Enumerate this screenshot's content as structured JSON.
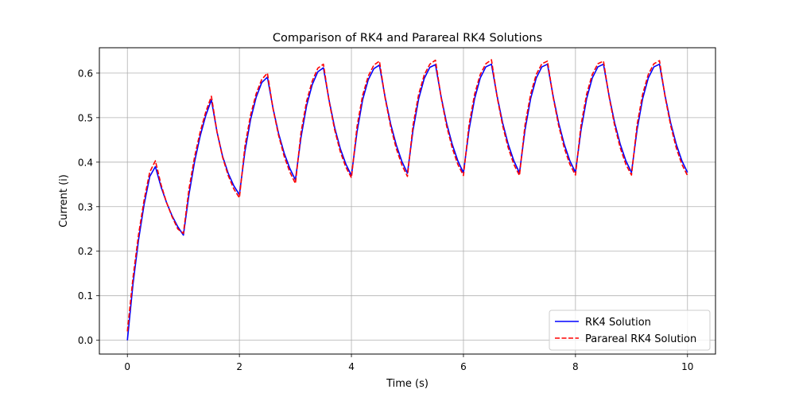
{
  "chart_data": {
    "type": "line",
    "title": "Comparison of RK4 and Parareal RK4 Solutions",
    "xlabel": "Time (s)",
    "ylabel": "Current (i)",
    "xlim": [
      -0.5,
      10.5
    ],
    "ylim": [
      -0.031,
      0.657
    ],
    "xticks": [
      0,
      2,
      4,
      6,
      8,
      10
    ],
    "xtick_labels": [
      "0",
      "2",
      "4",
      "6",
      "8",
      "10"
    ],
    "yticks": [
      0.0,
      0.1,
      0.2,
      0.3,
      0.4,
      0.5,
      0.6
    ],
    "ytick_labels": [
      "0.0",
      "0.1",
      "0.2",
      "0.3",
      "0.4",
      "0.5",
      "0.6"
    ],
    "grid": true,
    "legend_position": "lower-right",
    "series": [
      {
        "name": "RK4 Solution",
        "color": "#0000ff",
        "line_style": "solid",
        "x": [
          0,
          0.1,
          0.2,
          0.3,
          0.4,
          0.5,
          0.6,
          0.7,
          0.8,
          0.9,
          1.0,
          1.1,
          1.2,
          1.3,
          1.4,
          1.5,
          1.6,
          1.7,
          1.8,
          1.9,
          2.0,
          2.1,
          2.2,
          2.3,
          2.4,
          2.5,
          2.6,
          2.7,
          2.8,
          2.9,
          3.0,
          3.1,
          3.2,
          3.3,
          3.4,
          3.5,
          3.6,
          3.7,
          3.8,
          3.9,
          4.0,
          4.1,
          4.2,
          4.3,
          4.4,
          4.5,
          4.6,
          4.7,
          4.8,
          4.9,
          5.0,
          5.1,
          5.2,
          5.3,
          5.4,
          5.5,
          5.6,
          5.7,
          5.8,
          5.9,
          6.0,
          6.1,
          6.2,
          6.3,
          6.4,
          6.5,
          6.6,
          6.7,
          6.8,
          6.9,
          7.0,
          7.1,
          7.2,
          7.3,
          7.4,
          7.5,
          7.6,
          7.7,
          7.8,
          7.9,
          8.0,
          8.1,
          8.2,
          8.3,
          8.4,
          8.5,
          8.6,
          8.7,
          8.8,
          8.9,
          9.0,
          9.1,
          9.2,
          9.3,
          9.4,
          9.5,
          9.6,
          9.7,
          9.8,
          9.9,
          10.0
        ],
        "values": [
          0.0,
          0.126,
          0.226,
          0.306,
          0.368,
          0.39,
          0.345,
          0.309,
          0.279,
          0.255,
          0.236,
          0.328,
          0.401,
          0.459,
          0.505,
          0.54,
          0.468,
          0.413,
          0.375,
          0.347,
          0.327,
          0.425,
          0.496,
          0.546,
          0.579,
          0.591,
          0.521,
          0.464,
          0.42,
          0.386,
          0.36,
          0.456,
          0.527,
          0.574,
          0.603,
          0.612,
          0.54,
          0.478,
          0.431,
          0.396,
          0.37,
          0.468,
          0.54,
          0.585,
          0.61,
          0.618,
          0.547,
          0.486,
          0.439,
          0.402,
          0.375,
          0.472,
          0.542,
          0.588,
          0.613,
          0.619,
          0.548,
          0.487,
          0.44,
          0.403,
          0.376,
          0.473,
          0.543,
          0.589,
          0.614,
          0.62,
          0.549,
          0.488,
          0.44,
          0.403,
          0.376,
          0.473,
          0.543,
          0.589,
          0.614,
          0.62,
          0.549,
          0.488,
          0.44,
          0.403,
          0.377,
          0.473,
          0.543,
          0.589,
          0.614,
          0.62,
          0.549,
          0.488,
          0.44,
          0.403,
          0.377,
          0.473,
          0.543,
          0.589,
          0.614,
          0.62,
          0.549,
          0.488,
          0.44,
          0.403,
          0.377
        ]
      },
      {
        "name": "Parareal RK4 Solution",
        "color": "#ff0000",
        "line_style": "dashed",
        "x": [
          0,
          0.1,
          0.2,
          0.3,
          0.4,
          0.5,
          0.6,
          0.7,
          0.8,
          0.9,
          1.0,
          1.1,
          1.2,
          1.3,
          1.4,
          1.5,
          1.6,
          1.7,
          1.8,
          1.9,
          2.0,
          2.1,
          2.2,
          2.3,
          2.4,
          2.5,
          2.6,
          2.7,
          2.8,
          2.9,
          3.0,
          3.1,
          3.2,
          3.3,
          3.4,
          3.5,
          3.6,
          3.7,
          3.8,
          3.9,
          4.0,
          4.1,
          4.2,
          4.3,
          4.4,
          4.5,
          4.6,
          4.7,
          4.8,
          4.9,
          5.0,
          5.1,
          5.2,
          5.3,
          5.4,
          5.5,
          5.6,
          5.7,
          5.8,
          5.9,
          6.0,
          6.1,
          6.2,
          6.3,
          6.4,
          6.5,
          6.6,
          6.7,
          6.8,
          6.9,
          7.0,
          7.1,
          7.2,
          7.3,
          7.4,
          7.5,
          7.6,
          7.7,
          7.8,
          7.9,
          8.0,
          8.1,
          8.2,
          8.3,
          8.4,
          8.5,
          8.6,
          8.7,
          8.8,
          8.9,
          9.0,
          9.1,
          9.2,
          9.3,
          9.4,
          9.5,
          9.6,
          9.7,
          9.8,
          9.9,
          10.0
        ],
        "values": [
          0.02,
          0.14,
          0.238,
          0.316,
          0.378,
          0.403,
          0.35,
          0.309,
          0.277,
          0.25,
          0.24,
          0.34,
          0.412,
          0.468,
          0.513,
          0.548,
          0.468,
          0.411,
          0.37,
          0.34,
          0.32,
          0.437,
          0.506,
          0.554,
          0.586,
          0.6,
          0.52,
          0.46,
          0.413,
          0.378,
          0.352,
          0.467,
          0.537,
          0.582,
          0.611,
          0.62,
          0.538,
          0.473,
          0.424,
          0.389,
          0.365,
          0.48,
          0.55,
          0.593,
          0.618,
          0.627,
          0.545,
          0.48,
          0.431,
          0.394,
          0.368,
          0.483,
          0.552,
          0.596,
          0.62,
          0.629,
          0.546,
          0.481,
          0.432,
          0.395,
          0.37,
          0.484,
          0.553,
          0.597,
          0.621,
          0.63,
          0.547,
          0.482,
          0.432,
          0.395,
          0.37,
          0.484,
          0.553,
          0.597,
          0.621,
          0.627,
          0.547,
          0.482,
          0.432,
          0.395,
          0.371,
          0.484,
          0.553,
          0.597,
          0.621,
          0.627,
          0.547,
          0.482,
          0.432,
          0.395,
          0.371,
          0.484,
          0.553,
          0.597,
          0.621,
          0.628,
          0.547,
          0.482,
          0.432,
          0.395,
          0.37
        ]
      }
    ]
  }
}
